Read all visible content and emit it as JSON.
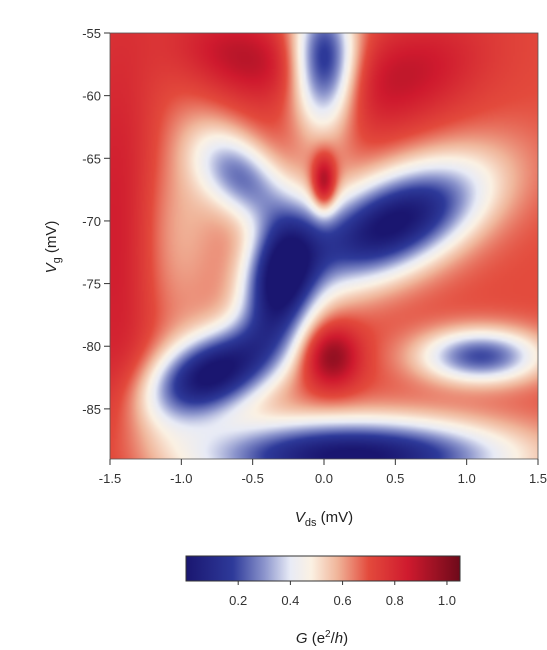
{
  "chart_data": {
    "type": "heatmap",
    "xlabel": {
      "var": "V",
      "sub": "ds",
      "unit": " (mV)"
    },
    "ylabel": {
      "var": "V",
      "sub": "g",
      "unit": " (mV)"
    },
    "xlim": [
      -1.5,
      1.5
    ],
    "ylim": [
      -89,
      -55
    ],
    "x_ticks": [
      {
        "value": -1.5,
        "label": "-1.5"
      },
      {
        "value": -1.0,
        "label": "-1.0"
      },
      {
        "value": -0.5,
        "label": "-0.5"
      },
      {
        "value": 0.0,
        "label": "0.0"
      },
      {
        "value": 0.5,
        "label": "0.5"
      },
      {
        "value": 1.0,
        "label": "1.0"
      },
      {
        "value": 1.5,
        "label": "1.5"
      }
    ],
    "y_ticks": [
      {
        "value": -55,
        "label": "-55"
      },
      {
        "value": -60,
        "label": "-60"
      },
      {
        "value": -65,
        "label": "-65"
      },
      {
        "value": -70,
        "label": "-70"
      },
      {
        "value": -75,
        "label": "-75"
      },
      {
        "value": -80,
        "label": "-80"
      },
      {
        "value": -85,
        "label": "-85"
      }
    ],
    "background_level": 0.7,
    "features": [
      {
        "x": 0.0,
        "y": -57.5,
        "sx": 0.16,
        "sy": 3.8,
        "rho": 0.0,
        "amp": -0.62
      },
      {
        "x": -0.58,
        "y": -66.5,
        "sx": 0.22,
        "sy": 2.6,
        "rho": -0.45,
        "amp": -0.42
      },
      {
        "x": 0.48,
        "y": -70.2,
        "sx": 0.45,
        "sy": 3.4,
        "rho": 0.55,
        "amp": -0.72
      },
      {
        "x": -0.3,
        "y": -74.5,
        "sx": 0.18,
        "sy": 3.8,
        "rho": 0.25,
        "amp": -0.68
      },
      {
        "x": -0.78,
        "y": -82.2,
        "sx": 0.32,
        "sy": 2.6,
        "rho": 0.45,
        "amp": -0.72
      },
      {
        "x": 1.1,
        "y": -80.8,
        "sx": 0.3,
        "sy": 1.5,
        "rho": 0.0,
        "amp": -0.5
      },
      {
        "x": 0.2,
        "y": -88.8,
        "sx": 0.75,
        "sy": 2.1,
        "rho": 0.0,
        "amp": -0.72
      },
      {
        "x": 0.0,
        "y": -67.0,
        "sx": 0.06,
        "sy": 1.6,
        "rho": 0.0,
        "amp": 0.35
      },
      {
        "x": 0.05,
        "y": -80.8,
        "sx": 0.14,
        "sy": 1.8,
        "rho": 0.0,
        "amp": 0.3
      },
      {
        "x": 0.55,
        "y": -58.5,
        "sx": 0.4,
        "sy": 3.2,
        "rho": 0.4,
        "amp": 0.18
      },
      {
        "x": -0.55,
        "y": -57.0,
        "sx": 0.35,
        "sy": 2.5,
        "rho": -0.3,
        "amp": 0.2
      },
      {
        "x": -1.45,
        "y": -72.0,
        "sx": 0.2,
        "sy": 14.0,
        "rho": 0.0,
        "amp": 0.15
      },
      {
        "x": -1.0,
        "y": -70.5,
        "sx": 0.22,
        "sy": 6.0,
        "rho": 0.2,
        "amp": -0.12
      }
    ],
    "colorbar": {
      "colors": [
        {
          "v": 0.0,
          "c": "#1a1670"
        },
        {
          "v": 0.18,
          "c": "#2e3a9a"
        },
        {
          "v": 0.3,
          "c": "#8b94cc"
        },
        {
          "v": 0.4,
          "c": "#e8ebf6"
        },
        {
          "v": 0.48,
          "c": "#fbf1e3"
        },
        {
          "v": 0.58,
          "c": "#f0b59a"
        },
        {
          "v": 0.7,
          "c": "#e34a3c"
        },
        {
          "v": 0.85,
          "c": "#cf1a2e"
        },
        {
          "v": 1.05,
          "c": "#6e0a1a"
        }
      ],
      "range": [
        0.0,
        1.05
      ],
      "ticks": [
        {
          "value": 0.2,
          "label": "0.2"
        },
        {
          "value": 0.4,
          "label": "0.4"
        },
        {
          "value": 0.6,
          "label": "0.6"
        },
        {
          "value": 0.8,
          "label": "0.8"
        },
        {
          "value": 1.0,
          "label": "1.0"
        }
      ],
      "label": {
        "var": "G",
        "open": " (e",
        "sup": "2",
        "close": "/",
        "var2": "h",
        "tail": ")"
      }
    }
  }
}
